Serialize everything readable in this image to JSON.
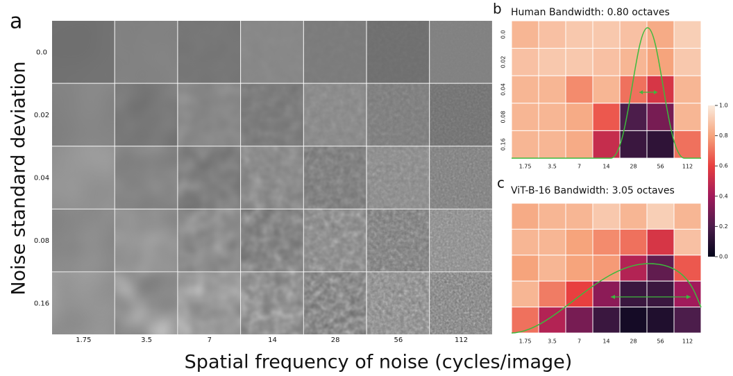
{
  "panel_a": {
    "label": "a",
    "row_labels": [
      "0.0",
      "0.02",
      "0.04",
      "0.08",
      "0.16"
    ],
    "column_labels": [
      "1.75",
      "3.5",
      "7",
      "14",
      "28",
      "56",
      "112"
    ],
    "y_label": "Noise standard deviation",
    "x_label": "Spatial frequency of noise (cycles/image)"
  },
  "chart_data": [
    {
      "type": "heatmap",
      "panel_label": "b",
      "title": "Human Bandwidth: 0.80 octaves",
      "x": [
        "1.75",
        "3.5",
        "7",
        "14",
        "28",
        "56",
        "112"
      ],
      "y": [
        "0.0",
        "0.02",
        "0.04",
        "0.08",
        "0.16"
      ],
      "values": [
        [
          0.85,
          0.88,
          0.9,
          0.9,
          0.88,
          0.82,
          0.92
        ],
        [
          0.88,
          0.9,
          0.9,
          0.88,
          0.85,
          0.8,
          0.9
        ],
        [
          0.85,
          0.85,
          0.75,
          0.85,
          0.7,
          0.55,
          0.85
        ],
        [
          0.85,
          0.85,
          0.82,
          0.65,
          0.2,
          0.3,
          0.85
        ],
        [
          0.85,
          0.85,
          0.82,
          0.5,
          0.15,
          0.12,
          0.7
        ]
      ]
    },
    {
      "type": "heatmap",
      "panel_label": "c",
      "title": "ViT-B-16 Bandwidth: 3.05 octaves",
      "x": [
        "1.75",
        "3.5",
        "7",
        "14",
        "28",
        "56",
        "112"
      ],
      "values": [
        [
          0.82,
          0.85,
          0.85,
          0.9,
          0.85,
          0.92,
          0.85
        ],
        [
          0.85,
          0.85,
          0.8,
          0.75,
          0.7,
          0.55,
          0.88
        ],
        [
          0.8,
          0.85,
          0.8,
          0.78,
          0.45,
          0.25,
          0.65
        ],
        [
          0.85,
          0.72,
          0.6,
          0.35,
          0.15,
          0.15,
          0.4
        ],
        [
          0.7,
          0.45,
          0.3,
          0.15,
          0.05,
          0.08,
          0.2
        ]
      ]
    }
  ],
  "colorbar": {
    "lim": [
      0,
      1
    ],
    "ticks": [
      {
        "value": 0,
        "label": "0.0"
      },
      0.2,
      0.4,
      0.6,
      0.8,
      {
        "value": 1,
        "label": "1.0"
      }
    ]
  }
}
